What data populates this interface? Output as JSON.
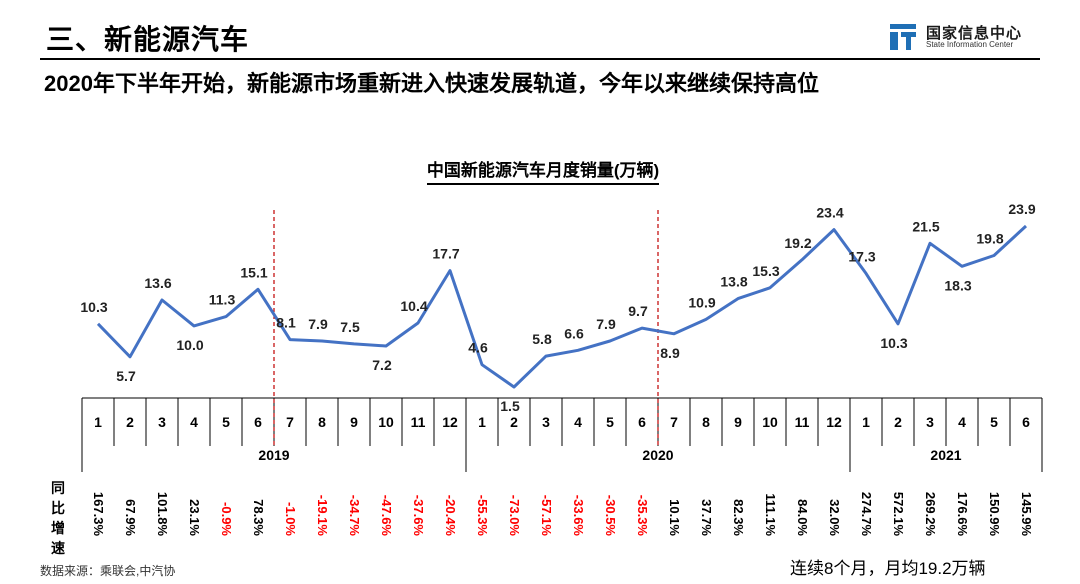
{
  "header": {
    "section_title": "三、新能源汽车",
    "subtitle": "2020年下半年开始，新能源市场重新进入快速发展轨道，今年以来继续保持高位",
    "logo_cn": "国家信息中心",
    "logo_en": "State Information Center"
  },
  "yoy_label": [
    "同",
    "比",
    "增",
    "速"
  ],
  "source": "数据来源：乘联会,中汽协",
  "footnote": "连续8个月，月均19.2万辆",
  "colors": {
    "line": "#4472c4",
    "divider": "#c00000",
    "negative": "#ff0000",
    "positive": "#000000"
  },
  "chart_data": {
    "type": "line",
    "title": "中国新能源汽车月度销量(万辆)",
    "years": [
      {
        "label": "2019",
        "months": 12
      },
      {
        "label": "2020",
        "months": 12
      },
      {
        "label": "2021",
        "months": 6
      }
    ],
    "categories": [
      "1",
      "2",
      "3",
      "4",
      "5",
      "6",
      "7",
      "8",
      "9",
      "10",
      "11",
      "12",
      "1",
      "2",
      "3",
      "4",
      "5",
      "6",
      "7",
      "8",
      "9",
      "10",
      "11",
      "12",
      "1",
      "2",
      "3",
      "4",
      "5",
      "6"
    ],
    "series": [
      {
        "values": [
          10.3,
          5.7,
          13.6,
          10.0,
          11.3,
          15.1,
          8.1,
          7.9,
          7.5,
          7.2,
          10.4,
          17.7,
          4.6,
          1.5,
          5.8,
          6.6,
          7.9,
          9.7,
          8.9,
          10.9,
          13.8,
          15.3,
          19.2,
          23.4,
          17.3,
          10.3,
          21.5,
          18.3,
          19.8,
          23.9
        ],
        "labels": [
          "10.3",
          "5.7",
          "13.6",
          "10.0",
          "11.3",
          "15.1",
          "8.1",
          "7.9",
          "7.5",
          "7.2",
          "10.4",
          "17.7",
          "4.6",
          "1.5",
          "5.8",
          "6.6",
          "7.9",
          "9.7",
          "8.9",
          "10.9",
          "13.8",
          "15.3",
          "19.2",
          "23.4",
          "17.3",
          "10.3",
          "21.5",
          "18.3",
          "19.8",
          "23.9"
        ]
      }
    ],
    "yoy": [
      {
        "label": "167.3%",
        "value": 167.3
      },
      {
        "label": "67.9%",
        "value": 67.9
      },
      {
        "label": "101.8%",
        "value": 101.8
      },
      {
        "label": "23.1%",
        "value": 23.1
      },
      {
        "label": "-0.9%",
        "value": -0.9
      },
      {
        "label": "78.3%",
        "value": 78.3
      },
      {
        "label": "-1.0%",
        "value": -1.0
      },
      {
        "label": "-19.1%",
        "value": -19.1
      },
      {
        "label": "-34.7%",
        "value": -34.7
      },
      {
        "label": "-47.6%",
        "value": -47.6
      },
      {
        "label": "-37.6%",
        "value": -37.6
      },
      {
        "label": "-20.4%",
        "value": -20.4
      },
      {
        "label": "-55.3%",
        "value": -55.3
      },
      {
        "label": "-73.0%",
        "value": -73.0
      },
      {
        "label": "-57.1%",
        "value": -57.1
      },
      {
        "label": "-33.6%",
        "value": -33.6
      },
      {
        "label": "-30.5%",
        "value": -30.5
      },
      {
        "label": "-35.3%",
        "value": -35.3
      },
      {
        "label": "10.1%",
        "value": 10.1
      },
      {
        "label": "37.7%",
        "value": 37.7
      },
      {
        "label": "82.3%",
        "value": 82.3
      },
      {
        "label": "111.1%",
        "value": 111.1
      },
      {
        "label": "84.0%",
        "value": 84.0
      },
      {
        "label": "32.0%",
        "value": 32.0
      },
      {
        "label": "274.7%",
        "value": 274.7
      },
      {
        "label": "572.1%",
        "value": 572.1
      },
      {
        "label": "269.2%",
        "value": 269.2
      },
      {
        "label": "176.6%",
        "value": 176.6
      },
      {
        "label": "150.9%",
        "value": 150.9
      },
      {
        "label": "145.9%",
        "value": 145.9
      }
    ],
    "dividers_after_index": [
      5,
      17
    ],
    "legend": "none",
    "grid": false
  }
}
